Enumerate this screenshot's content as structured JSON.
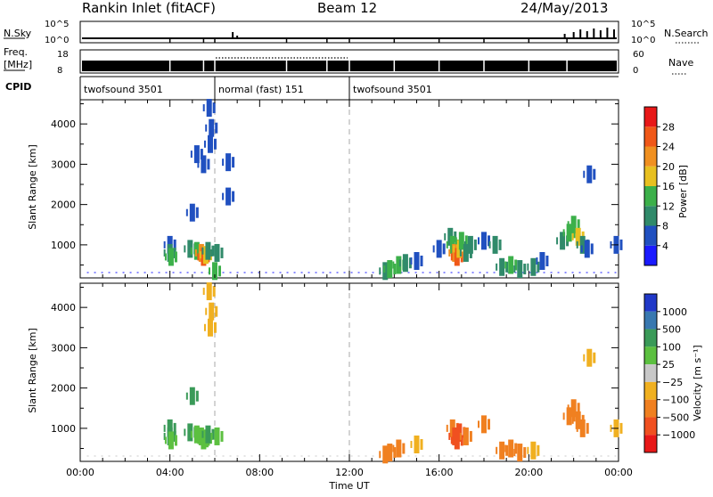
{
  "header": {
    "title": "Rankin Inlet (fitACF)",
    "beam": "Beam 12",
    "date": "24/May/2013"
  },
  "strips": {
    "nsky_label": "N.Sky",
    "nsky_top": "10^5",
    "nsky_bottom": "10^0",
    "nsearch_label": "N.Search",
    "nsearch_top": "10^5",
    "nsearch_bottom": "10^0",
    "freq_label": "Freq.",
    "freq_unit": "[MHz]",
    "freq_top": "18",
    "freq_bottom": "8",
    "nave_label": "Nave",
    "nave_top": "60",
    "nave_bottom": "0",
    "cpid_label": "CPID",
    "cpid_segments": [
      {
        "label": "twofsound 3501",
        "start_hour": 0.0,
        "end_hour": 6.0
      },
      {
        "label": "normal (fast) 151",
        "start_hour": 6.0,
        "end_hour": 12.0
      },
      {
        "label": "twofsound 3501",
        "start_hour": 12.0,
        "end_hour": 24.0
      }
    ]
  },
  "power_scale": {
    "label": "Power [dB]",
    "ticks": [
      "4",
      "8",
      "12",
      "16",
      "20",
      "24",
      "28"
    ],
    "colors": [
      "#1a1aff",
      "#2050c0",
      "#308a6a",
      "#3cb04a",
      "#e8c020",
      "#f09020",
      "#f05818",
      "#e81818"
    ]
  },
  "velocity_scale": {
    "label": "Velocity [m s⁻¹]",
    "ticks": [
      "1000",
      "500",
      "100",
      "25",
      "−25",
      "−100",
      "−500",
      "−1000"
    ],
    "colors": [
      "#2038c8",
      "#3878b0",
      "#3a9a58",
      "#5cc040",
      "#c8c8c8",
      "#f0b020",
      "#f08020",
      "#f05020",
      "#e81818"
    ]
  },
  "axes": {
    "ylabel": "Slant Range [km]",
    "xlabel": "Time UT",
    "x_ticks": [
      "00:00",
      "04:00",
      "08:00",
      "12:00",
      "16:00",
      "20:00",
      "00:00"
    ],
    "y_ticks": [
      "1000",
      "2000",
      "3000",
      "4000"
    ]
  },
  "chart_data": [
    {
      "type": "heatmap",
      "panel": "power",
      "xlabel": "Time UT",
      "ylabel": "Slant Range [km]",
      "xlim": [
        0,
        24
      ],
      "ylim": [
        180,
        4600
      ],
      "colorbar": "Power [dB]",
      "points": [
        {
          "t": 4.0,
          "r": 1000,
          "v": 6
        },
        {
          "t": 4.0,
          "r": 800,
          "v": 10
        },
        {
          "t": 4.05,
          "r": 700,
          "v": 14
        },
        {
          "t": 4.9,
          "r": 900,
          "v": 8
        },
        {
          "t": 5.2,
          "r": 850,
          "v": 12
        },
        {
          "t": 5.4,
          "r": 800,
          "v": 22
        },
        {
          "t": 5.5,
          "r": 700,
          "v": 26
        },
        {
          "t": 5.6,
          "r": 750,
          "v": 16
        },
        {
          "t": 5.7,
          "r": 850,
          "v": 10
        },
        {
          "t": 5.85,
          "r": 3900,
          "v": 6
        },
        {
          "t": 5.75,
          "r": 4400,
          "v": 4
        },
        {
          "t": 5.8,
          "r": 3500,
          "v": 6
        },
        {
          "t": 5.5,
          "r": 3000,
          "v": 4
        },
        {
          "t": 5.2,
          "r": 3250,
          "v": 4
        },
        {
          "t": 6.6,
          "r": 3050,
          "v": 6
        },
        {
          "t": 6.6,
          "r": 2200,
          "v": 6
        },
        {
          "t": 5.0,
          "r": 1800,
          "v": 4
        },
        {
          "t": 6.1,
          "r": 800,
          "v": 8
        },
        {
          "t": 6.0,
          "r": 350,
          "v": 14
        },
        {
          "t": 13.6,
          "r": 350,
          "v": 10
        },
        {
          "t": 13.8,
          "r": 400,
          "v": 14
        },
        {
          "t": 14.2,
          "r": 500,
          "v": 12
        },
        {
          "t": 14.5,
          "r": 550,
          "v": 8
        },
        {
          "t": 15.0,
          "r": 600,
          "v": 6
        },
        {
          "t": 16.5,
          "r": 1200,
          "v": 8
        },
        {
          "t": 16.6,
          "r": 1000,
          "v": 14
        },
        {
          "t": 16.7,
          "r": 800,
          "v": 22
        },
        {
          "t": 16.8,
          "r": 700,
          "v": 26
        },
        {
          "t": 16.9,
          "r": 900,
          "v": 18
        },
        {
          "t": 17.0,
          "r": 1100,
          "v": 12
        },
        {
          "t": 17.2,
          "r": 800,
          "v": 10
        },
        {
          "t": 17.4,
          "r": 1000,
          "v": 8
        },
        {
          "t": 16.0,
          "r": 900,
          "v": 6
        },
        {
          "t": 18.0,
          "r": 1100,
          "v": 6
        },
        {
          "t": 18.5,
          "r": 1000,
          "v": 8
        },
        {
          "t": 18.8,
          "r": 450,
          "v": 10
        },
        {
          "t": 19.2,
          "r": 500,
          "v": 14
        },
        {
          "t": 19.6,
          "r": 400,
          "v": 10
        },
        {
          "t": 20.2,
          "r": 450,
          "v": 8
        },
        {
          "t": 20.6,
          "r": 600,
          "v": 6
        },
        {
          "t": 21.5,
          "r": 1100,
          "v": 8
        },
        {
          "t": 21.8,
          "r": 1300,
          "v": 12
        },
        {
          "t": 22.0,
          "r": 1500,
          "v": 14
        },
        {
          "t": 22.2,
          "r": 1200,
          "v": 18
        },
        {
          "t": 22.4,
          "r": 1000,
          "v": 10
        },
        {
          "t": 22.6,
          "r": 900,
          "v": 6
        },
        {
          "t": 23.9,
          "r": 1000,
          "v": 6
        },
        {
          "t": 22.7,
          "r": 2750,
          "v": 4
        }
      ]
    },
    {
      "type": "heatmap",
      "panel": "velocity",
      "xlabel": "Time UT",
      "ylabel": "Slant Range [km]",
      "xlim": [
        0,
        24
      ],
      "ylim": [
        180,
        4600
      ],
      "colorbar": "Velocity [m s⁻¹]",
      "points": [
        {
          "t": 4.0,
          "r": 1000,
          "v": 300
        },
        {
          "t": 4.0,
          "r": 800,
          "v": 150
        },
        {
          "t": 4.05,
          "r": 700,
          "v": 60
        },
        {
          "t": 4.9,
          "r": 900,
          "v": 200
        },
        {
          "t": 5.2,
          "r": 850,
          "v": 80
        },
        {
          "t": 5.4,
          "r": 800,
          "v": 60
        },
        {
          "t": 5.5,
          "r": 700,
          "v": 90
        },
        {
          "t": 5.6,
          "r": 750,
          "v": 40
        },
        {
          "t": 5.7,
          "r": 850,
          "v": 150
        },
        {
          "t": 5.85,
          "r": 3900,
          "v": -60
        },
        {
          "t": 5.75,
          "r": 4400,
          "v": -80
        },
        {
          "t": 5.8,
          "r": 3500,
          "v": -50
        },
        {
          "t": 5.0,
          "r": 1800,
          "v": 300
        },
        {
          "t": 6.1,
          "r": 800,
          "v": 80
        },
        {
          "t": 13.6,
          "r": 350,
          "v": -300
        },
        {
          "t": 13.8,
          "r": 400,
          "v": -200
        },
        {
          "t": 14.2,
          "r": 500,
          "v": -150
        },
        {
          "t": 15.0,
          "r": 600,
          "v": -80
        },
        {
          "t": 16.6,
          "r": 1000,
          "v": -400
        },
        {
          "t": 16.7,
          "r": 800,
          "v": -700
        },
        {
          "t": 16.8,
          "r": 700,
          "v": -900
        },
        {
          "t": 16.9,
          "r": 900,
          "v": -600
        },
        {
          "t": 17.2,
          "r": 800,
          "v": -300
        },
        {
          "t": 18.0,
          "r": 1100,
          "v": -120
        },
        {
          "t": 18.8,
          "r": 450,
          "v": -150
        },
        {
          "t": 19.2,
          "r": 500,
          "v": -200
        },
        {
          "t": 19.6,
          "r": 400,
          "v": -120
        },
        {
          "t": 20.2,
          "r": 450,
          "v": -80
        },
        {
          "t": 21.8,
          "r": 1300,
          "v": -300
        },
        {
          "t": 22.0,
          "r": 1500,
          "v": -500
        },
        {
          "t": 22.2,
          "r": 1200,
          "v": -400
        },
        {
          "t": 22.4,
          "r": 1000,
          "v": -200
        },
        {
          "t": 22.7,
          "r": 2750,
          "v": -60
        },
        {
          "t": 23.9,
          "r": 1000,
          "v": -80
        }
      ]
    }
  ]
}
